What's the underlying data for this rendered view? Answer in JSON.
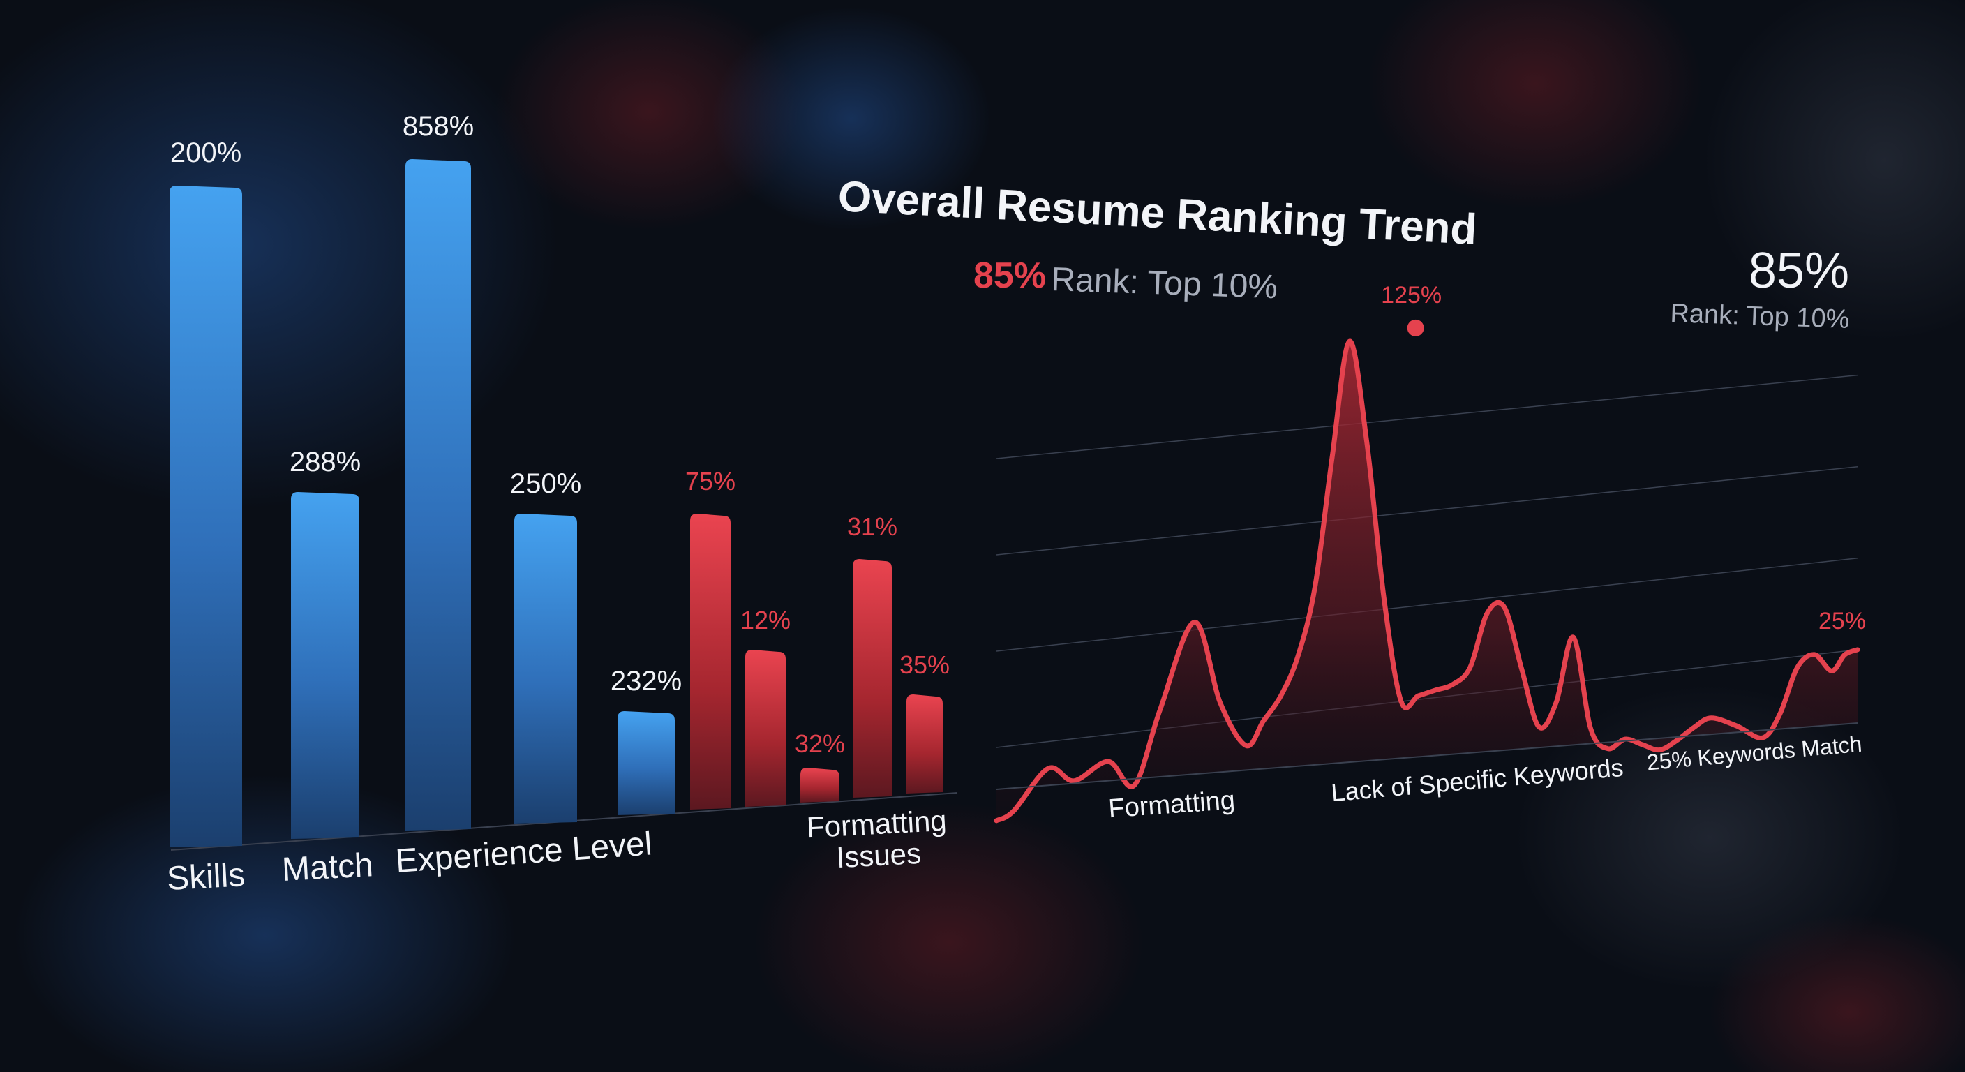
{
  "colors": {
    "background": "#0a0e16",
    "blue": "#3f99ea",
    "blue_dark": "#1f4f86",
    "red": "#e5424e",
    "red_dark": "#7a1b26",
    "white_text": "#f2f4f8",
    "grey_text": "#a8aebb"
  },
  "chart_data": [
    {
      "type": "bar",
      "bars": [
        {
          "label": "200%",
          "value": 200,
          "series": "blue"
        },
        {
          "label": "288%",
          "value": 288,
          "series": "blue"
        },
        {
          "label": "858%",
          "value": 858,
          "series": "blue"
        },
        {
          "label": "250%",
          "value": 250,
          "series": "blue"
        },
        {
          "label": "232%",
          "value": 232,
          "series": "blue"
        },
        {
          "label": "75%",
          "value": 75,
          "series": "red"
        },
        {
          "label": "12%",
          "value": 12,
          "series": "red"
        },
        {
          "label": "32%",
          "value": 32,
          "series": "red"
        },
        {
          "label": "31%",
          "value": 31,
          "series": "red"
        },
        {
          "label": "35%",
          "value": 35,
          "series": "red"
        }
      ],
      "category_labels": [
        "Skills",
        "Match",
        "Experience Level",
        "Formatting",
        "Issues"
      ]
    },
    {
      "type": "area",
      "title": "Overall Resume Ranking Trend",
      "score_value": "85%",
      "score_rank": "Rank: Top 10%",
      "corner_value": "85%",
      "corner_rank": "Rank: Top 10%",
      "x_labels": [
        "Formatting",
        "Lack of Specific Keywords",
        "25% Keywords Match"
      ],
      "annotations": [
        {
          "label": "125%",
          "x": 0.49,
          "y": 125
        },
        {
          "label": "25%",
          "x": 1.0,
          "y": 25
        }
      ],
      "x": [
        0.0,
        0.02,
        0.06,
        0.09,
        0.13,
        0.16,
        0.19,
        0.23,
        0.26,
        0.29,
        0.31,
        0.33,
        0.35,
        0.37,
        0.39,
        0.41,
        0.43,
        0.45,
        0.47,
        0.49,
        0.51,
        0.53,
        0.55,
        0.57,
        0.59,
        0.61,
        0.63,
        0.65,
        0.67,
        0.69,
        0.71,
        0.73,
        0.75,
        0.77,
        0.79,
        0.81,
        0.83,
        0.86,
        0.89,
        0.91,
        0.93,
        0.95,
        0.97,
        0.985,
        1.0
      ],
      "y": [
        6,
        8,
        18,
        14,
        18,
        11,
        30,
        52,
        30,
        18,
        24,
        30,
        40,
        58,
        92,
        122,
        95,
        53,
        25,
        26,
        27,
        28,
        32,
        46,
        47,
        30,
        14,
        20,
        37,
        12,
        6,
        8,
        6,
        4,
        6,
        9,
        11,
        8,
        4,
        10,
        22,
        25,
        20,
        24,
        25
      ]
    }
  ]
}
